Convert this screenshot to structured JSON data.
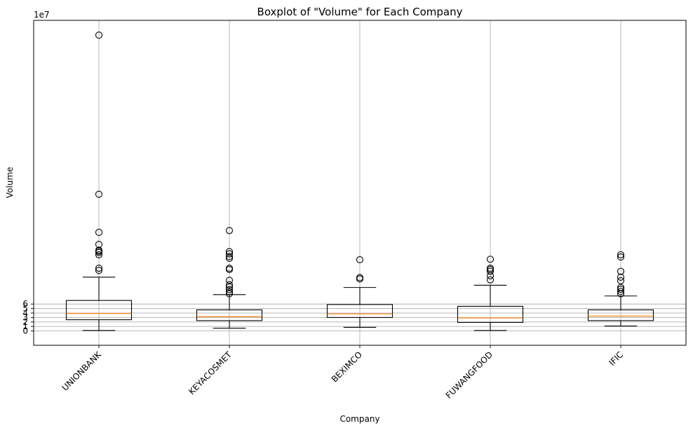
{
  "chart_data": {
    "type": "box",
    "title": "Boxplot of \"Volume\" for Each Company",
    "xlabel": "Company",
    "ylabel": "Volume",
    "y_multiplier_label": "1e7",
    "ylim": [
      -3.2,
      69.3
    ],
    "yticks": [
      0,
      1,
      2,
      3,
      4,
      5,
      6
    ],
    "grid": true,
    "colors": {
      "box": "#000000",
      "median": "#ff7f0e",
      "grid": "#b0b0b0"
    },
    "categories": [
      "UNIONBANK",
      "KEYACOSMET",
      "BEXIMCO",
      "FUWANGFOOD",
      "IFIC"
    ],
    "boxes": [
      {
        "whisker_low": 0.1,
        "q1": 2.5,
        "median": 3.9,
        "q3": 6.8,
        "whisker_high": 12.0,
        "outliers": [
          13.5,
          14.0,
          17.0,
          17.5,
          17.8,
          18.0,
          19.3,
          22.0,
          30.5,
          66.0
        ]
      },
      {
        "whisker_low": 0.6,
        "q1": 2.3,
        "median": 3.2,
        "q3": 4.7,
        "whisker_high": 8.1,
        "outliers": [
          8.3,
          8.7,
          9.2,
          9.8,
          10.3,
          11.3,
          13.7,
          14.0,
          16.2,
          16.6,
          17.2,
          17.7,
          22.4
        ]
      },
      {
        "whisker_low": 0.8,
        "q1": 3.0,
        "median": 3.8,
        "q3": 5.9,
        "whisker_high": 9.7,
        "outliers": [
          11.6,
          11.9,
          15.9
        ]
      },
      {
        "whisker_low": 0.1,
        "q1": 1.9,
        "median": 2.9,
        "q3": 5.5,
        "whisker_high": 10.2,
        "outliers": [
          11.4,
          12.3,
          13.3,
          13.7,
          14.0,
          16.0
        ]
      },
      {
        "whisker_low": 1.1,
        "q1": 2.3,
        "median": 3.3,
        "q3": 4.7,
        "whisker_high": 7.8,
        "outliers": [
          8.3,
          8.8,
          9.3,
          9.7,
          11.2,
          12.0,
          13.3,
          16.5,
          17.0
        ]
      }
    ]
  }
}
